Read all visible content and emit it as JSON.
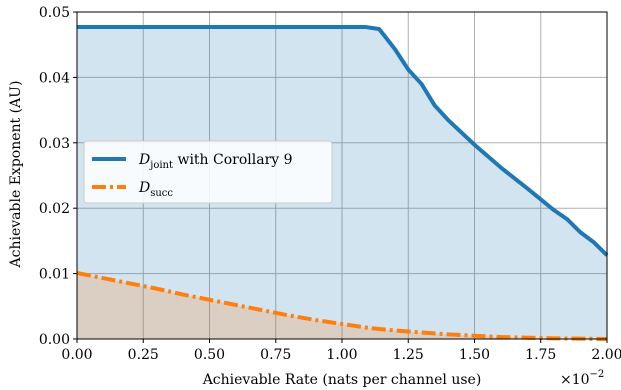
{
  "chart_data": {
    "type": "area",
    "xlabel": "Achievable Rate (nats per channel use)",
    "ylabel": "Achievable Exponent (AU)",
    "x_multiplier": "×10",
    "x_multiplier_exp": "−2",
    "xlim": [
      0,
      2.0
    ],
    "ylim": [
      0,
      0.05
    ],
    "x_ticks": [
      "0.00",
      "0.25",
      "0.50",
      "0.75",
      "1.00",
      "1.25",
      "1.50",
      "1.75",
      "2.00"
    ],
    "y_ticks": [
      "0.00",
      "0.01",
      "0.02",
      "0.03",
      "0.04",
      "0.05"
    ],
    "grid": true,
    "legend_location": "center-left",
    "series": [
      {
        "name": "D",
        "name_sub": "joint",
        "name_suffix": " with Corollary 9",
        "color": "#1f77b4",
        "fill": "#1f77b4",
        "style": "solid",
        "x": [
          0.0,
          0.2,
          0.4,
          0.6,
          0.8,
          1.0,
          1.09,
          1.14,
          1.2,
          1.25,
          1.3,
          1.35,
          1.4,
          1.5,
          1.6,
          1.7,
          1.8,
          1.85,
          1.9,
          1.95,
          2.0
        ],
        "y": [
          0.0477,
          0.0477,
          0.0477,
          0.0477,
          0.0477,
          0.0477,
          0.0477,
          0.0474,
          0.0443,
          0.0412,
          0.039,
          0.0357,
          0.0335,
          0.0297,
          0.0262,
          0.023,
          0.0197,
          0.0183,
          0.0163,
          0.0148,
          0.0128
        ]
      },
      {
        "name": "D",
        "name_sub": "succ",
        "name_suffix": "",
        "color": "#ff7f0e",
        "fill": "#ff7f0e",
        "style": "dashdot",
        "x": [
          0.0,
          0.1,
          0.2,
          0.3,
          0.4,
          0.5,
          0.6,
          0.7,
          0.8,
          0.9,
          1.0,
          1.1,
          1.2,
          1.3,
          1.4,
          1.5,
          1.6,
          1.7,
          1.8,
          1.9,
          2.0
        ],
        "y": [
          0.0101,
          0.0093,
          0.0085,
          0.0077,
          0.0068,
          0.006,
          0.0052,
          0.0044,
          0.0036,
          0.0029,
          0.0023,
          0.0017,
          0.0013,
          0.001,
          0.0007,
          0.0005,
          0.0003,
          0.0002,
          0.0001,
          5e-05,
          0.0
        ]
      }
    ]
  }
}
